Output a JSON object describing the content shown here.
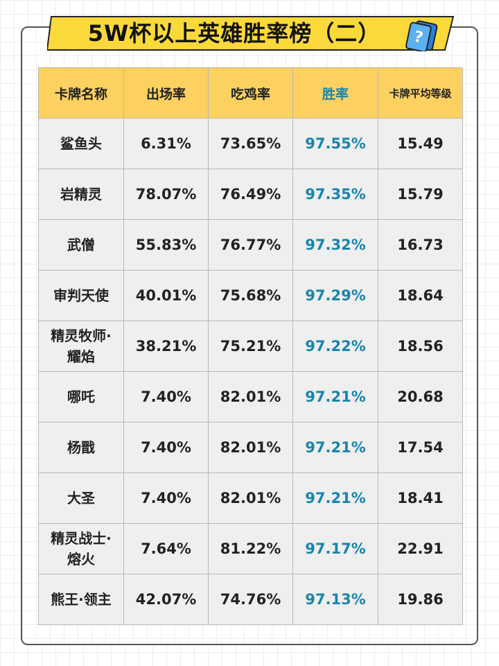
{
  "header": {
    "title": "5W杯以上英雄胜率榜（二）"
  },
  "table": {
    "columns": [
      "卡牌名称",
      "出场率",
      "吃鸡率",
      "胜率",
      "卡牌平均等级"
    ],
    "rows": [
      [
        "鲨鱼头",
        "6.31%",
        "73.65%",
        "97.55%",
        "15.49"
      ],
      [
        "岩精灵",
        "78.07%",
        "76.49%",
        "97.35%",
        "15.79"
      ],
      [
        "武僧",
        "55.83%",
        "76.77%",
        "97.32%",
        "16.73"
      ],
      [
        "审判天使",
        "40.01%",
        "75.68%",
        "97.29%",
        "18.64"
      ],
      [
        "精灵牧师·耀焰",
        "38.21%",
        "75.21%",
        "97.22%",
        "18.56"
      ],
      [
        "哪吒",
        "7.40%",
        "82.01%",
        "97.21%",
        "20.68"
      ],
      [
        "杨戬",
        "7.40%",
        "82.01%",
        "97.21%",
        "17.54"
      ],
      [
        "大圣",
        "7.40%",
        "82.01%",
        "97.21%",
        "18.41"
      ],
      [
        "精灵战士·熔火",
        "7.64%",
        "81.22%",
        "97.17%",
        "22.91"
      ],
      [
        "熊王·领主",
        "42.07%",
        "74.76%",
        "97.13%",
        "19.86"
      ]
    ]
  }
}
